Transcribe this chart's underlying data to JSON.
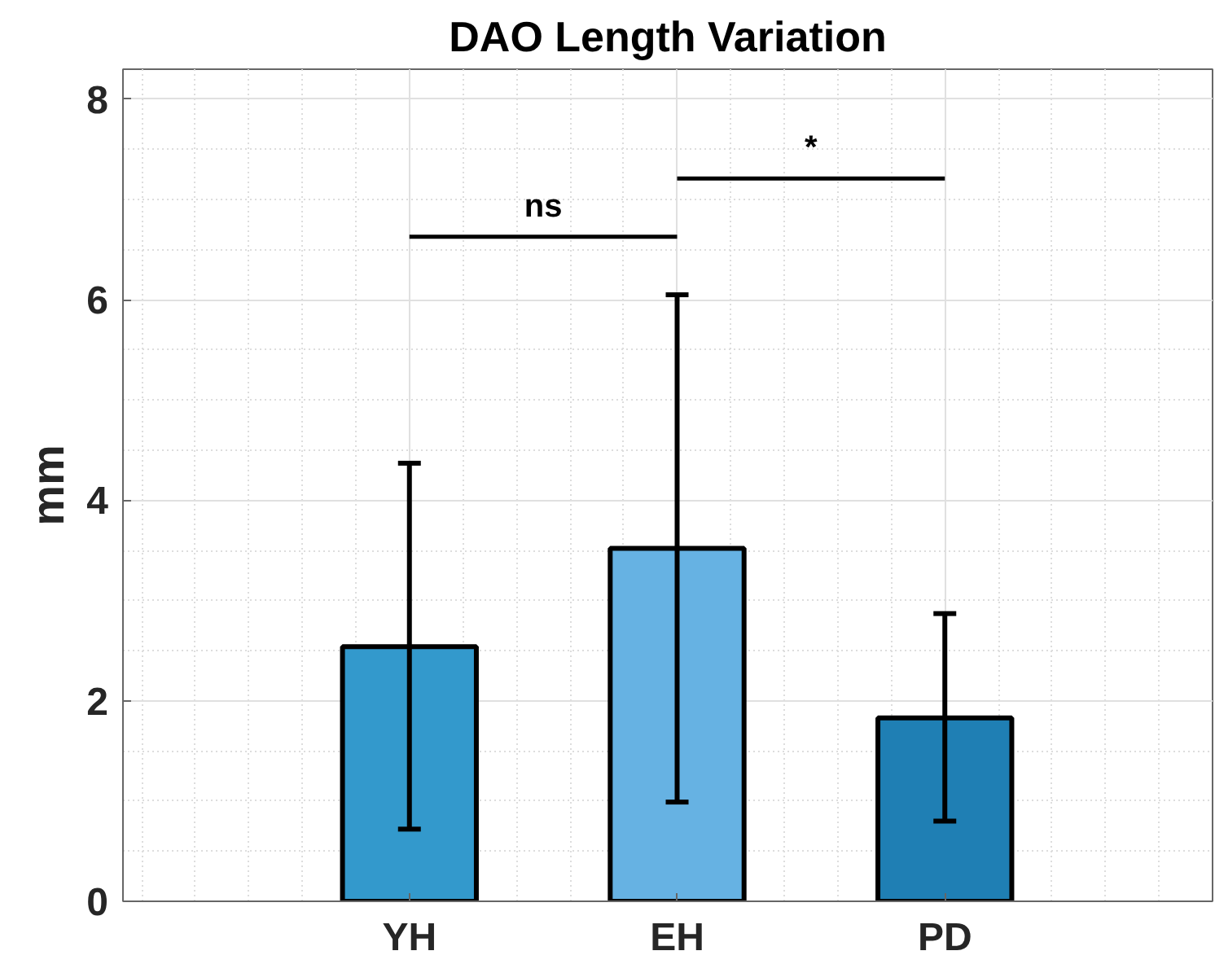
{
  "chart_data": {
    "type": "bar",
    "title": "DAO Length Variation",
    "ylabel": "mm",
    "categories": [
      "YH",
      "EH",
      "PD"
    ],
    "values": [
      2.54,
      3.52,
      1.83
    ],
    "colors": [
      "#3399cc",
      "#66b2e3",
      "#1f7fb4"
    ],
    "errors": [
      [
        0.72,
        4.37
      ],
      [
        0.99,
        6.05
      ],
      [
        0.8,
        2.87
      ]
    ],
    "ylim": [
      0,
      8.3
    ],
    "yticks": [
      0,
      2,
      4,
      6,
      8
    ],
    "grid": true,
    "annotations": [
      "ns",
      "*"
    ]
  }
}
